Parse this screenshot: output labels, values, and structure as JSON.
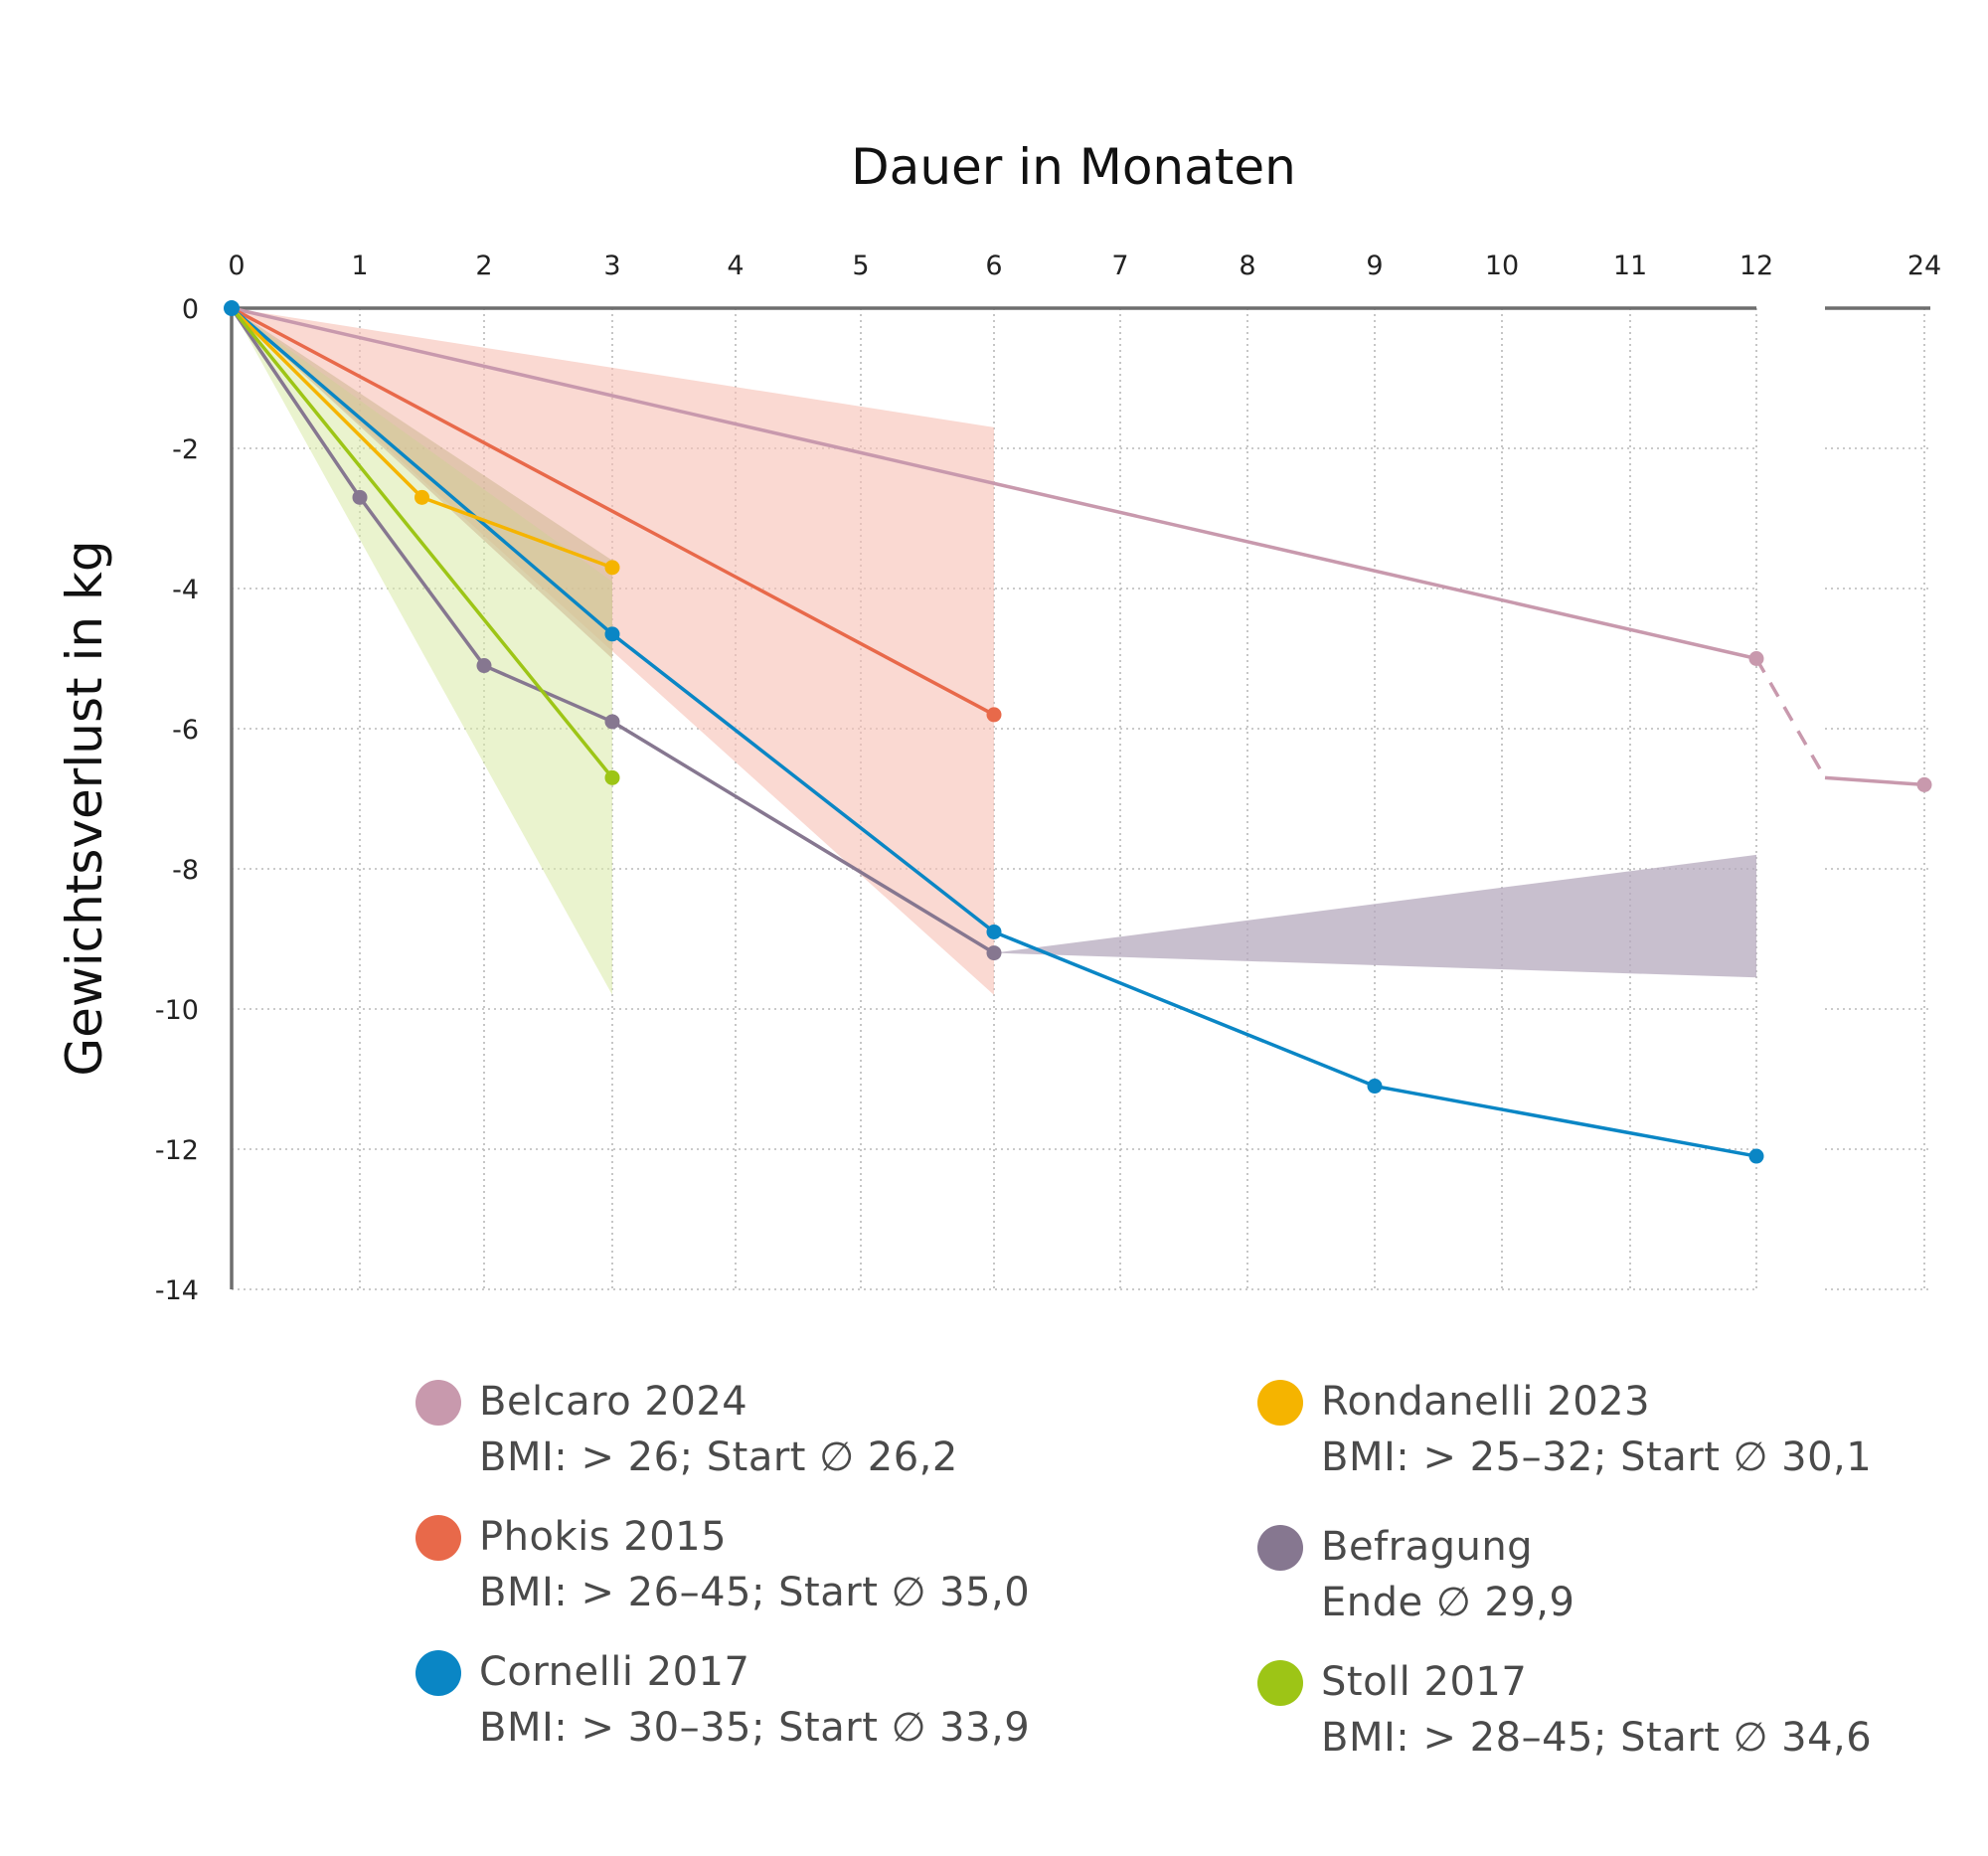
{
  "chart_data": {
    "type": "line",
    "title": "Dauer in Monaten",
    "xlabel": "Dauer in Monaten",
    "ylabel": "Gewichtsverlust in kg",
    "x_ticks": [
      0,
      1,
      2,
      3,
      4,
      5,
      6,
      7,
      8,
      9,
      10,
      11,
      12,
      24
    ],
    "x_tick_labels": [
      "0",
      "1",
      "2",
      "3",
      "4",
      "5",
      "6",
      "7",
      "8",
      "9",
      "10",
      "11",
      "12",
      "24"
    ],
    "y_ticks": [
      0,
      -2,
      -4,
      -6,
      -8,
      -10,
      -12,
      -14
    ],
    "y_tick_labels": [
      "0",
      "-2",
      "-4",
      "-6",
      "-8",
      "-10",
      "-12",
      "-14"
    ],
    "ylim": [
      -14,
      0
    ],
    "xlim": [
      0,
      24
    ],
    "axis_break_between": [
      12,
      24
    ],
    "grid": true,
    "series": [
      {
        "name": "Belcaro 2024",
        "color": "#c899ad",
        "points": [
          [
            0,
            0
          ],
          [
            12,
            -5.0
          ]
        ],
        "dashed_extension": [
          [
            12,
            -5.0
          ],
          [
            24,
            -6.8
          ]
        ]
      },
      {
        "name": "Phokis 2015",
        "color": "#e8694a",
        "points": [
          [
            0,
            0
          ],
          [
            6,
            -5.8
          ]
        ]
      },
      {
        "name": "Cornelli 2017",
        "color": "#0a86c5",
        "points": [
          [
            0,
            0
          ],
          [
            3,
            -4.65
          ],
          [
            6,
            -8.9
          ],
          [
            9,
            -11.1
          ],
          [
            12,
            -12.1
          ]
        ]
      },
      {
        "name": "Rondanelli 2023",
        "color": "#f5b400",
        "points": [
          [
            0,
            0
          ],
          [
            1.5,
            -2.7
          ],
          [
            3,
            -3.7
          ]
        ]
      },
      {
        "name": "Befragung",
        "color": "#867790",
        "points": [
          [
            0,
            0
          ],
          [
            1,
            -2.7
          ],
          [
            2,
            -5.1
          ],
          [
            3,
            -5.9
          ],
          [
            6,
            -9.2
          ]
        ]
      },
      {
        "name": "Stoll 2017",
        "color": "#9dc516",
        "points": [
          [
            0,
            0
          ],
          [
            3,
            -6.7
          ]
        ]
      }
    ],
    "ranges": [
      {
        "name": "Phokis 2015 range",
        "color": "#f6c0b4",
        "opacity": 0.6,
        "polygon": [
          [
            0,
            0
          ],
          [
            6,
            -1.7
          ],
          [
            6,
            -9.8
          ]
        ]
      },
      {
        "name": "Stoll 2017 range",
        "color": "#d8eaa5",
        "opacity": 0.55,
        "polygon": [
          [
            0,
            0
          ],
          [
            3,
            -3.9
          ],
          [
            3,
            -9.8
          ]
        ]
      },
      {
        "name": "Rondanelli 2023 range",
        "color": "#c9b189",
        "opacity": 0.5,
        "polygon": [
          [
            0,
            0
          ],
          [
            3,
            -3.6
          ],
          [
            3,
            -5.0
          ]
        ]
      },
      {
        "name": "Befragung range",
        "color": "#b6a9bd",
        "opacity": 0.75,
        "polygon": [
          [
            6,
            -9.2
          ],
          [
            12,
            -7.8
          ],
          [
            12,
            -9.55
          ]
        ]
      }
    ]
  },
  "legend": [
    {
      "name": "Belcaro 2024",
      "detail": "BMI: > 26; Start ∅  26,2",
      "color": "#c899ad"
    },
    {
      "name": "Phokis 2015",
      "detail": "BMI: > 26–45; Start ∅  35,0",
      "color": "#e8694a"
    },
    {
      "name": "Cornelli 2017",
      "detail": "BMI: > 30–35; Start ∅  33,9",
      "color": "#0a86c5"
    },
    {
      "name": "Rondanelli 2023",
      "detail": "BMI: > 25–32; Start ∅  30,1",
      "color": "#f5b400"
    },
    {
      "name": "Befragung",
      "detail": "Ende ∅  29,9",
      "color": "#867790"
    },
    {
      "name": "Stoll 2017",
      "detail": "BMI: > 28–45; Start ∅  34,6",
      "color": "#9dc516"
    }
  ]
}
